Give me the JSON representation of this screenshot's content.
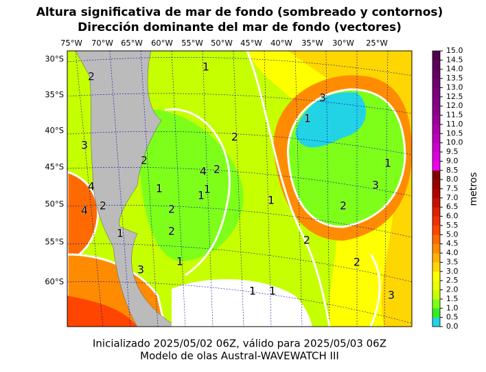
{
  "header": {
    "title": "Altura significativa de mar de fondo (sombreado y contornos)",
    "subtitle": "Dirección dominante del mar de fondo (vectores)"
  },
  "map": {
    "lon_labels": [
      "75°W",
      "70°W",
      "65°W",
      "60°W",
      "55°W",
      "50°W",
      "45°W",
      "40°W",
      "35°W",
      "30°W",
      "25°W"
    ],
    "lat_labels": [
      "30°S",
      "35°S",
      "40°S",
      "45°S",
      "50°S",
      "55°S",
      "60°S"
    ],
    "contour_labels": [
      "1",
      "2",
      "2",
      "1",
      "3",
      "4",
      "2",
      "2",
      "1",
      "1",
      "1",
      "2",
      "1",
      "3",
      "4",
      "4",
      "2",
      "3",
      "2",
      "1",
      "1",
      "1",
      "3",
      "2",
      "1",
      "2",
      "2",
      "3",
      "1"
    ]
  },
  "colorbar": {
    "label": "metros",
    "ticks": [
      "0.0",
      "0.5",
      "1.0",
      "1.5",
      "2.0",
      "2.5",
      "3.0",
      "3.5",
      "4.0",
      "4.5",
      "5.0",
      "5.5",
      "6.0",
      "6.5",
      "7.0",
      "7.5",
      "8.0",
      "8.5",
      "9.0",
      "9.5",
      "10.0",
      "10.5",
      "11.0",
      "11.5",
      "12.0",
      "12.5",
      "13.0",
      "13.5",
      "14.0",
      "14.5",
      "15.0"
    ],
    "colors": [
      "#22d3e6",
      "#33ee22",
      "#7dff1a",
      "#c6ff00",
      "#e8ff00",
      "#ffff00",
      "#ffd700",
      "#ffb000",
      "#ff8c00",
      "#ff6a00",
      "#ff4500",
      "#f03000",
      "#dd2000",
      "#c81000",
      "#b00000",
      "#980000",
      "#800000",
      "#ee00ee",
      "#dd00dd",
      "#cc00cc",
      "#bb00bb",
      "#aa00aa",
      "#990099",
      "#880088",
      "#800080",
      "#780078",
      "#6e006e",
      "#640064",
      "#5a005a",
      "#500050"
    ]
  },
  "footer": {
    "line1": "Inicializado 2025/05/02 06Z, válido para 2025/05/03 06Z",
    "line2": "Modelo de olas Austral-WAVEWATCH III"
  }
}
